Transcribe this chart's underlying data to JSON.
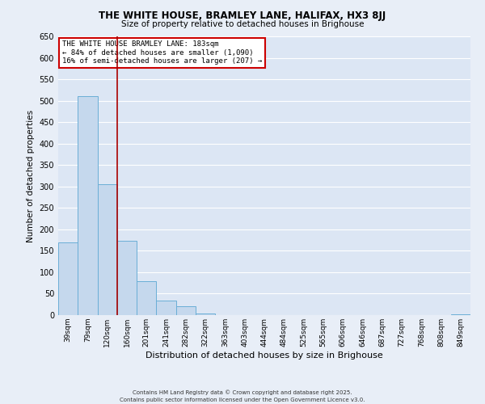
{
  "title_line1": "THE WHITE HOUSE, BRAMLEY LANE, HALIFAX, HX3 8JJ",
  "title_line2": "Size of property relative to detached houses in Brighouse",
  "xlabel": "Distribution of detached houses by size in Brighouse",
  "ylabel": "Number of detached properties",
  "bar_labels": [
    "39sqm",
    "79sqm",
    "120sqm",
    "160sqm",
    "201sqm",
    "241sqm",
    "282sqm",
    "322sqm",
    "363sqm",
    "403sqm",
    "444sqm",
    "484sqm",
    "525sqm",
    "565sqm",
    "606sqm",
    "646sqm",
    "687sqm",
    "727sqm",
    "768sqm",
    "808sqm",
    "849sqm"
  ],
  "bar_values": [
    170,
    510,
    305,
    173,
    80,
    33,
    20,
    3,
    0,
    0,
    0,
    0,
    0,
    0,
    0,
    0,
    0,
    0,
    0,
    0,
    1
  ],
  "bar_color": "#c5d8ed",
  "bar_edge_color": "#6aaed6",
  "annotation_line1": "THE WHITE HOUSE BRAMLEY LANE: 183sqm",
  "annotation_line2": "← 84% of detached houses are smaller (1,090)",
  "annotation_line3": "16% of semi-detached houses are larger (207) →",
  "vline_color": "#aa0000",
  "annotation_box_edge_color": "#cc0000",
  "ylim": [
    0,
    650
  ],
  "yticks": [
    0,
    50,
    100,
    150,
    200,
    250,
    300,
    350,
    400,
    450,
    500,
    550,
    600,
    650
  ],
  "footer_line1": "Contains HM Land Registry data © Crown copyright and database right 2025.",
  "footer_line2": "Contains public sector information licensed under the Open Government Licence v3.0.",
  "bg_color": "#e8eef7",
  "plot_bg_color": "#dce6f4",
  "grid_color": "#ffffff"
}
